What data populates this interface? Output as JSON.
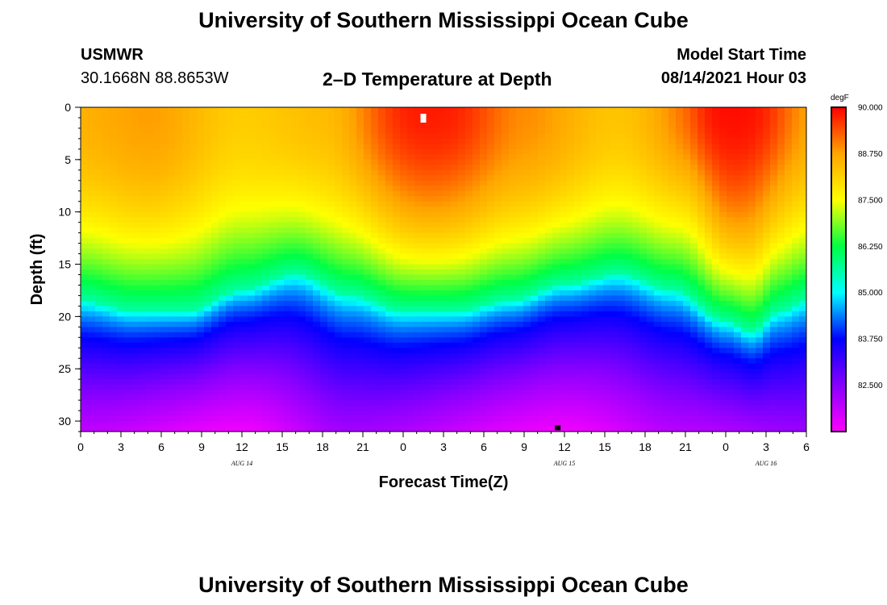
{
  "page": {
    "title_top": "University of Southern Mississippi Ocean Cube",
    "title_bottom": "University of Southern Mississippi Ocean Cube",
    "station": "USMWR",
    "coords": "30.1668N  88.8653W",
    "plot_title": "2–D Temperature at Depth",
    "model_label": "Model Start Time",
    "model_time": "08/14/2021 Hour 03"
  },
  "chart_data": {
    "type": "heatmap",
    "title": "2–D Temperature at Depth",
    "xlabel": "Forecast Time(Z)",
    "ylabel": "Depth (ft)",
    "x_range_hours": [
      0,
      54
    ],
    "x_tick_labels": [
      "0",
      "3",
      "6",
      "9",
      "12",
      "15",
      "18",
      "21",
      "0",
      "3",
      "6",
      "9",
      "12",
      "15",
      "18",
      "21",
      "0",
      "3",
      "6"
    ],
    "date_labels": [
      {
        "label": "AUG 14",
        "hour": 12
      },
      {
        "label": "AUG 15",
        "hour": 36
      },
      {
        "label": "AUG 16",
        "hour": 51
      }
    ],
    "ylim": [
      31,
      0
    ],
    "y_ticks": [
      0,
      5,
      10,
      15,
      20,
      25,
      30
    ],
    "colorbar": {
      "unit": "degF",
      "range": [
        81.25,
        90.0
      ],
      "labels": [
        "90.000",
        "88.750",
        "87.500",
        "86.250",
        "85.000",
        "83.750",
        "82.500"
      ],
      "colors": [
        "#ff00ff",
        "#8800ff",
        "#0000ff",
        "#00ffff",
        "#00ff44",
        "#ffff00",
        "#ffa500",
        "#ff0000"
      ]
    },
    "thermocline_depth_ft": [
      {
        "hour": 0,
        "depth": 18.5
      },
      {
        "hour": 4,
        "depth": 19.5
      },
      {
        "hour": 8,
        "depth": 19.5
      },
      {
        "hour": 12,
        "depth": 17.5
      },
      {
        "hour": 16,
        "depth": 16.0
      },
      {
        "hour": 20,
        "depth": 18.0
      },
      {
        "hour": 24,
        "depth": 19.5
      },
      {
        "hour": 28,
        "depth": 19.5
      },
      {
        "hour": 32,
        "depth": 18.5
      },
      {
        "hour": 36,
        "depth": 17.0
      },
      {
        "hour": 40,
        "depth": 16.0
      },
      {
        "hour": 44,
        "depth": 17.5
      },
      {
        "hour": 48,
        "depth": 20.5
      },
      {
        "hour": 50,
        "depth": 21.5
      },
      {
        "hour": 52,
        "depth": 19.5
      },
      {
        "hour": 54,
        "depth": 18.5
      }
    ],
    "surface_warm_peaks": [
      {
        "hour": 26,
        "temp_f": 89.8,
        "width_h": 4
      },
      {
        "hour": 48.5,
        "temp_f": 89.9,
        "width_h": 4
      }
    ],
    "surface_temp_f": [
      {
        "hour": 0,
        "temp_f": 88.6
      },
      {
        "hour": 5,
        "temp_f": 88.8
      },
      {
        "hour": 12,
        "temp_f": 88.2
      },
      {
        "hour": 18,
        "temp_f": 88.4
      },
      {
        "hour": 26,
        "temp_f": 89.6
      },
      {
        "hour": 33,
        "temp_f": 88.9
      },
      {
        "hour": 40,
        "temp_f": 88.3
      },
      {
        "hour": 45,
        "temp_f": 88.6
      },
      {
        "hour": 48.5,
        "temp_f": 89.8
      },
      {
        "hour": 54,
        "temp_f": 88.6
      }
    ],
    "bottom_temp_f": [
      {
        "hour": 0,
        "temp_f": 81.9
      },
      {
        "hour": 12,
        "temp_f": 81.4
      },
      {
        "hour": 20,
        "temp_f": 82.2
      },
      {
        "hour": 36,
        "temp_f": 81.4
      },
      {
        "hour": 45,
        "temp_f": 82.0
      },
      {
        "hour": 54,
        "temp_f": 82.3
      }
    ],
    "markers": [
      {
        "name": "surface-marker",
        "hour": 25.5,
        "depth": 1.0,
        "color": "#ffffff"
      },
      {
        "name": "bottom-marker",
        "hour": 35.5,
        "depth": 30.8,
        "color": "#000000"
      }
    ]
  }
}
